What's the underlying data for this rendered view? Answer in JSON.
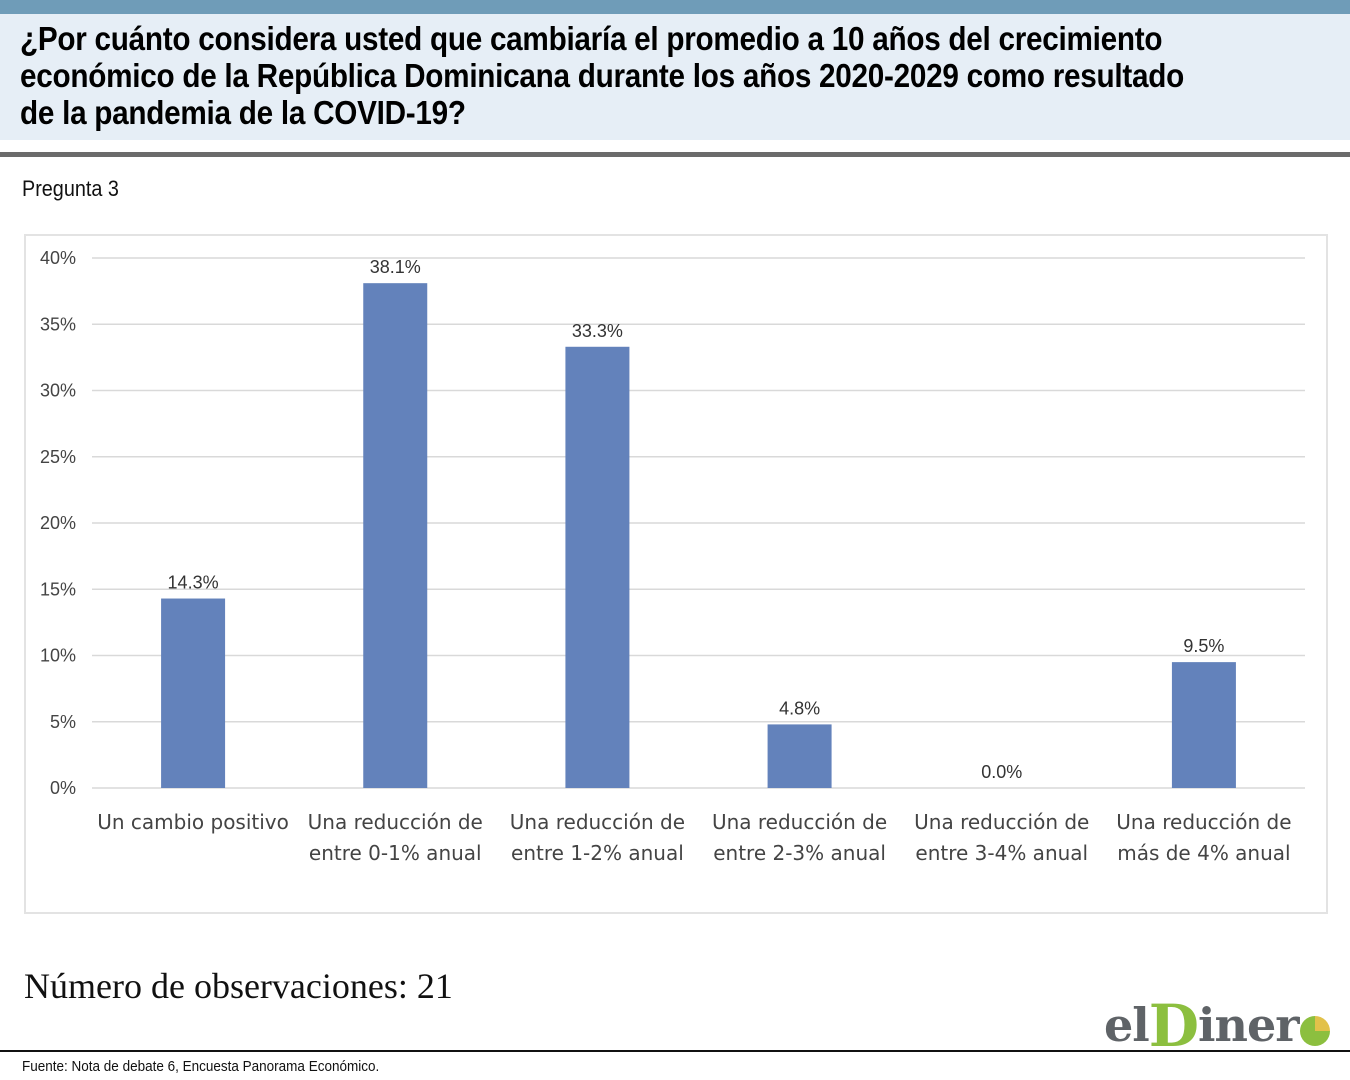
{
  "header": {
    "title": "¿Por cuánto considera usted que cambiaría el promedio a 10 años del crecimiento económico de la República Dominicana durante los años 2020-2029 como resultado de la pandemia de la COVID-19?",
    "question_label": "Pregunta 3"
  },
  "chart_data": {
    "type": "bar",
    "title": "",
    "xlabel": "",
    "ylabel": "",
    "ylim": [
      0,
      40
    ],
    "yticks": [
      0,
      5,
      10,
      15,
      20,
      25,
      30,
      35,
      40
    ],
    "ytick_labels": [
      "0%",
      "5%",
      "10%",
      "15%",
      "20%",
      "25%",
      "30%",
      "35%",
      "40%"
    ],
    "categories": [
      [
        "Un cambio positivo"
      ],
      [
        "Una reducción de",
        "entre 0-1% anual"
      ],
      [
        "Una reducción de",
        "entre 1-2% anual"
      ],
      [
        "Una reducción de",
        "entre 2-3% anual"
      ],
      [
        "Una reducción de",
        "entre 3-4% anual"
      ],
      [
        "Una reducción de",
        "más de 4% anual"
      ]
    ],
    "values": [
      14.3,
      38.1,
      33.3,
      4.8,
      0.0,
      9.5
    ],
    "value_labels": [
      "14.3%",
      "38.1%",
      "33.3%",
      "4.8%",
      "0.0%",
      "9.5%"
    ],
    "grid": true,
    "legend": "none",
    "colors": {
      "bar": "#6382bb",
      "grid": "#d9d9d9"
    }
  },
  "footer": {
    "observations": "Número de observaciones: 21",
    "source": "Fuente: Nota de debate 6, Encuesta Panorama Económico.",
    "logo_prefix": "el",
    "logo_letter": "D",
    "logo_suffix": "iner"
  }
}
